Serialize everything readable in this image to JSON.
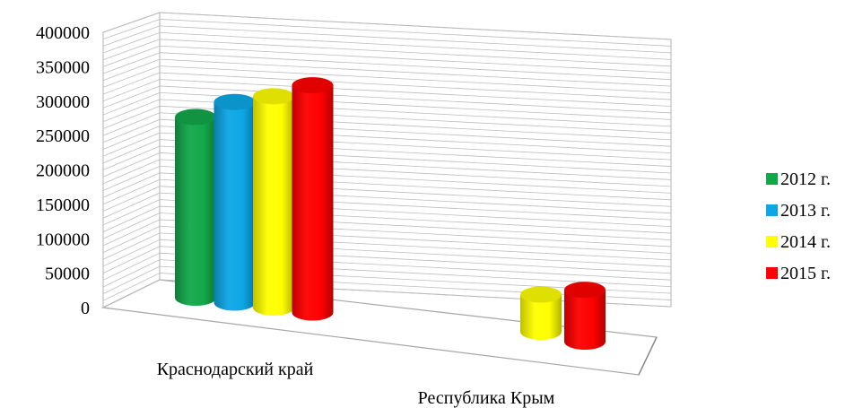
{
  "chart_data": {
    "type": "bar",
    "categories": [
      "Краснодарский край",
      "Республика Крым"
    ],
    "series": [
      {
        "name": "2012 г.",
        "color": "#12a84a",
        "values": [
          272000,
          null
        ]
      },
      {
        "name": "2013 г.",
        "color": "#0da7e6",
        "values": [
          302000,
          null
        ]
      },
      {
        "name": "2014 г.",
        "color": "#ffff00",
        "values": [
          318000,
          56000
        ]
      },
      {
        "name": "2015 г.",
        "color": "#ff0000",
        "values": [
          342000,
          78000
        ]
      }
    ],
    "yticks": [
      "400000",
      "350000",
      "300000",
      "250000",
      "200000",
      "150000",
      "100000",
      "50000",
      "0"
    ],
    "ylim": [
      0,
      400000
    ],
    "shape": "cylinder",
    "three_d": true,
    "legend_position": "right",
    "title": "",
    "xlabel": "",
    "ylabel": ""
  }
}
